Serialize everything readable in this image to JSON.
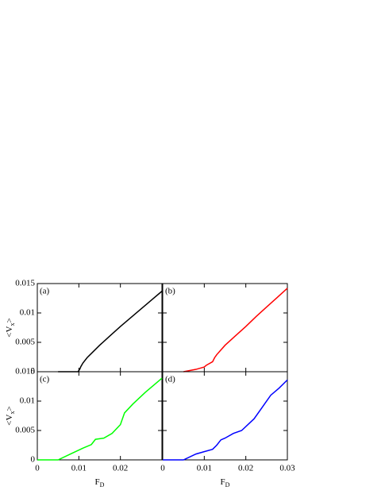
{
  "chart_data": [
    {
      "type": "line",
      "label": "(a)",
      "ylabel": [
        "<V",
        "x",
        ">"
      ],
      "x": [
        0.005,
        0.008,
        0.0098,
        0.0102,
        0.0105,
        0.011,
        0.012,
        0.013,
        0.015,
        0.0175,
        0.02,
        0.0225,
        0.025,
        0.0275,
        0.03
      ],
      "series": [
        {
          "color": "#000000",
          "values": [
            0,
            0,
            0,
            0.0004,
            0.0009,
            0.0015,
            0.0024,
            0.0031,
            0.0045,
            0.0061,
            0.0077,
            0.0092,
            0.0107,
            0.0122,
            0.0137
          ]
        }
      ],
      "xlim": [
        0,
        0.03
      ],
      "ylim": [
        0,
        0.015
      ],
      "xticks": [
        0,
        0.01,
        0.02,
        0.03
      ],
      "yticks": [
        0,
        0.005,
        0.01,
        0.015
      ]
    },
    {
      "type": "line",
      "label": "(b)",
      "x": [
        0.005,
        0.008,
        0.01,
        0.0105,
        0.011,
        0.012,
        0.0125,
        0.013,
        0.015,
        0.0175,
        0.02,
        0.0225,
        0.025,
        0.0275,
        0.03
      ],
      "series": [
        {
          "color": "#ff0000",
          "values": [
            0,
            0.0004,
            0.0008,
            0.0011,
            0.0013,
            0.0017,
            0.0024,
            0.0029,
            0.0045,
            0.0061,
            0.0077,
            0.0094,
            0.011,
            0.0126,
            0.0142
          ]
        }
      ],
      "xlim": [
        0,
        0.03
      ],
      "ylim": [
        0,
        0.015
      ],
      "xticks": [
        0,
        0.01,
        0.02,
        0.03
      ],
      "yticks": [
        0,
        0.005,
        0.01,
        0.015
      ]
    },
    {
      "type": "line",
      "label": "(c)",
      "ylabel": [
        "<V",
        "x",
        ">"
      ],
      "xlabel": [
        "F",
        "D"
      ],
      "x": [
        0,
        0.005,
        0.008,
        0.011,
        0.013,
        0.014,
        0.015,
        0.016,
        0.018,
        0.02,
        0.021,
        0.023,
        0.026,
        0.028,
        0.03
      ],
      "series": [
        {
          "color": "#00ff00",
          "values": [
            0,
            0,
            0.001,
            0.002,
            0.0026,
            0.0035,
            0.0036,
            0.0037,
            0.0045,
            0.006,
            0.008,
            0.0095,
            0.0115,
            0.0127,
            0.0139
          ]
        }
      ],
      "xlim": [
        0,
        0.03
      ],
      "ylim": [
        0,
        0.015
      ],
      "xticks": [
        0,
        0.01,
        0.02,
        0.03
      ],
      "yticks": [
        0,
        0.005,
        0.01,
        0.015
      ]
    },
    {
      "type": "line",
      "label": "(d)",
      "xlabel": [
        "F",
        "D"
      ],
      "x": [
        0,
        0.005,
        0.008,
        0.012,
        0.013,
        0.014,
        0.015,
        0.017,
        0.019,
        0.022,
        0.024,
        0.026,
        0.028,
        0.03
      ],
      "series": [
        {
          "color": "#0000ff",
          "values": [
            0,
            0,
            0.001,
            0.0018,
            0.0025,
            0.0034,
            0.0037,
            0.0045,
            0.005,
            0.007,
            0.009,
            0.011,
            0.0122,
            0.0136
          ]
        }
      ],
      "xlim": [
        0,
        0.03
      ],
      "ylim": [
        0,
        0.015
      ],
      "xticks": [
        0,
        0.01,
        0.02,
        0.03
      ],
      "yticks": [
        0,
        0.005,
        0.01,
        0.015
      ]
    }
  ]
}
